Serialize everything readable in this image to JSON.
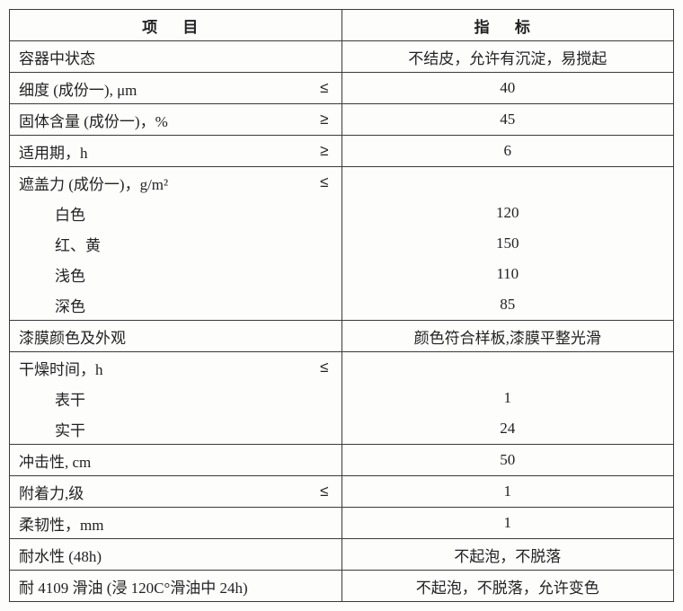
{
  "header": {
    "item": "项 目",
    "value": "指 标"
  },
  "rows": [
    {
      "label": "容器中状态",
      "op": "",
      "value": "不结皮，允许有沉淀，易搅起",
      "indent": false,
      "groupFirst": true,
      "groupLast": true
    },
    {
      "label": "细度 (成份一), μm",
      "op": "≤",
      "value": "40",
      "indent": false,
      "groupFirst": true,
      "groupLast": true
    },
    {
      "label": "固体含量 (成份一)，%",
      "op": "≥",
      "value": "45",
      "indent": false,
      "groupFirst": true,
      "groupLast": true
    },
    {
      "label": "适用期，h",
      "op": "≥",
      "value": "6",
      "indent": false,
      "groupFirst": true,
      "groupLast": true
    },
    {
      "label": "遮盖力 (成份一)，g/m²",
      "op": "≤",
      "value": "",
      "indent": false,
      "groupFirst": true,
      "groupLast": false
    },
    {
      "label": "白色",
      "op": "",
      "value": "120",
      "indent": true,
      "groupFirst": false,
      "groupLast": false
    },
    {
      "label": "红、黄",
      "op": "",
      "value": "150",
      "indent": true,
      "groupFirst": false,
      "groupLast": false
    },
    {
      "label": "浅色",
      "op": "",
      "value": "110",
      "indent": true,
      "groupFirst": false,
      "groupLast": false
    },
    {
      "label": "深色",
      "op": "",
      "value": "85",
      "indent": true,
      "groupFirst": false,
      "groupLast": true
    },
    {
      "label": "漆膜颜色及外观",
      "op": "",
      "value": "颜色符合样板,漆膜平整光滑",
      "indent": false,
      "groupFirst": true,
      "groupLast": true
    },
    {
      "label": "干燥时间，h",
      "op": "≤",
      "value": "",
      "indent": false,
      "groupFirst": true,
      "groupLast": false
    },
    {
      "label": "表干",
      "op": "",
      "value": "1",
      "indent": true,
      "groupFirst": false,
      "groupLast": false
    },
    {
      "label": "实干",
      "op": "",
      "value": "24",
      "indent": true,
      "groupFirst": false,
      "groupLast": true
    },
    {
      "label": "冲击性, cm",
      "op": "",
      "value": "50",
      "indent": false,
      "groupFirst": true,
      "groupLast": true
    },
    {
      "label": "附着力,级",
      "op": "≤",
      "value": "1",
      "indent": false,
      "groupFirst": true,
      "groupLast": true
    },
    {
      "label": "柔韧性，mm",
      "op": "",
      "value": "1",
      "indent": false,
      "groupFirst": true,
      "groupLast": true
    },
    {
      "label": "耐水性 (48h)",
      "op": "",
      "value": "不起泡，不脱落",
      "indent": false,
      "groupFirst": true,
      "groupLast": true
    },
    {
      "label": "耐 4109 滑油 (浸 120C°滑油中 24h)",
      "op": "",
      "value": "不起泡，不脱落，允许变色",
      "indent": false,
      "groupFirst": true,
      "groupLast": true
    }
  ]
}
